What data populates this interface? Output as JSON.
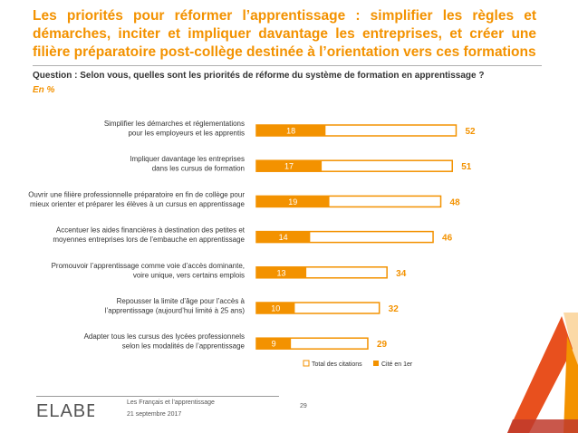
{
  "header": {
    "title": "Les priorités pour réformer l’apprentissage : simplifier les règles et démarches, inciter et impliquer davantage les entreprises, et créer une filière préparatoire post-collège destinée à l’orientation vers ces formations",
    "question": "Question : Selon vous, quelles sont les priorités de réforme du système de formation en apprentissage ?",
    "unit": "En %"
  },
  "colors": {
    "accent": "#f39200",
    "text": "#333333"
  },
  "chart_data": {
    "type": "bar",
    "orientation": "horizontal",
    "categories": [
      [
        "Simplifier les démarches et réglementations",
        "pour les employeurs et les apprentis"
      ],
      [
        "Impliquer davantage les entreprises",
        "dans les cursus de formation"
      ],
      [
        "Ouvrir une filière professionnelle préparatoire en fin de collège pour",
        "mieux orienter et préparer les élèves à un cursus en apprentissage"
      ],
      [
        "Accentuer les aides financières à destination des petites et",
        "moyennes entreprises lors de l’embauche en apprentissage"
      ],
      [
        "Promouvoir l’apprentissage comme voie d’accès dominante,",
        "voire unique, vers certains emplois"
      ],
      [
        "Repousser la limite d’âge pour l’accès à",
        "l’apprentissage (aujourd’hui limité à 25 ans)"
      ],
      [
        "Adapter tous les cursus des lycées professionnels",
        "selon les modalités de l’apprentissage"
      ]
    ],
    "series": [
      {
        "name": "Total des citations",
        "values": [
          52,
          51,
          48,
          46,
          34,
          32,
          29
        ],
        "color": "#ffffff",
        "stroke": "#f39200"
      },
      {
        "name": "Cité en 1er",
        "values": [
          18,
          17,
          19,
          14,
          13,
          10,
          9
        ],
        "color": "#f39200"
      }
    ],
    "xlim": [
      0,
      55
    ],
    "legend": "bottom-right",
    "grid": false
  },
  "footer": {
    "logo": "ELABE",
    "study": "Les Français et l’apprentissage",
    "date": "21 septembre 2017",
    "page": "29"
  }
}
